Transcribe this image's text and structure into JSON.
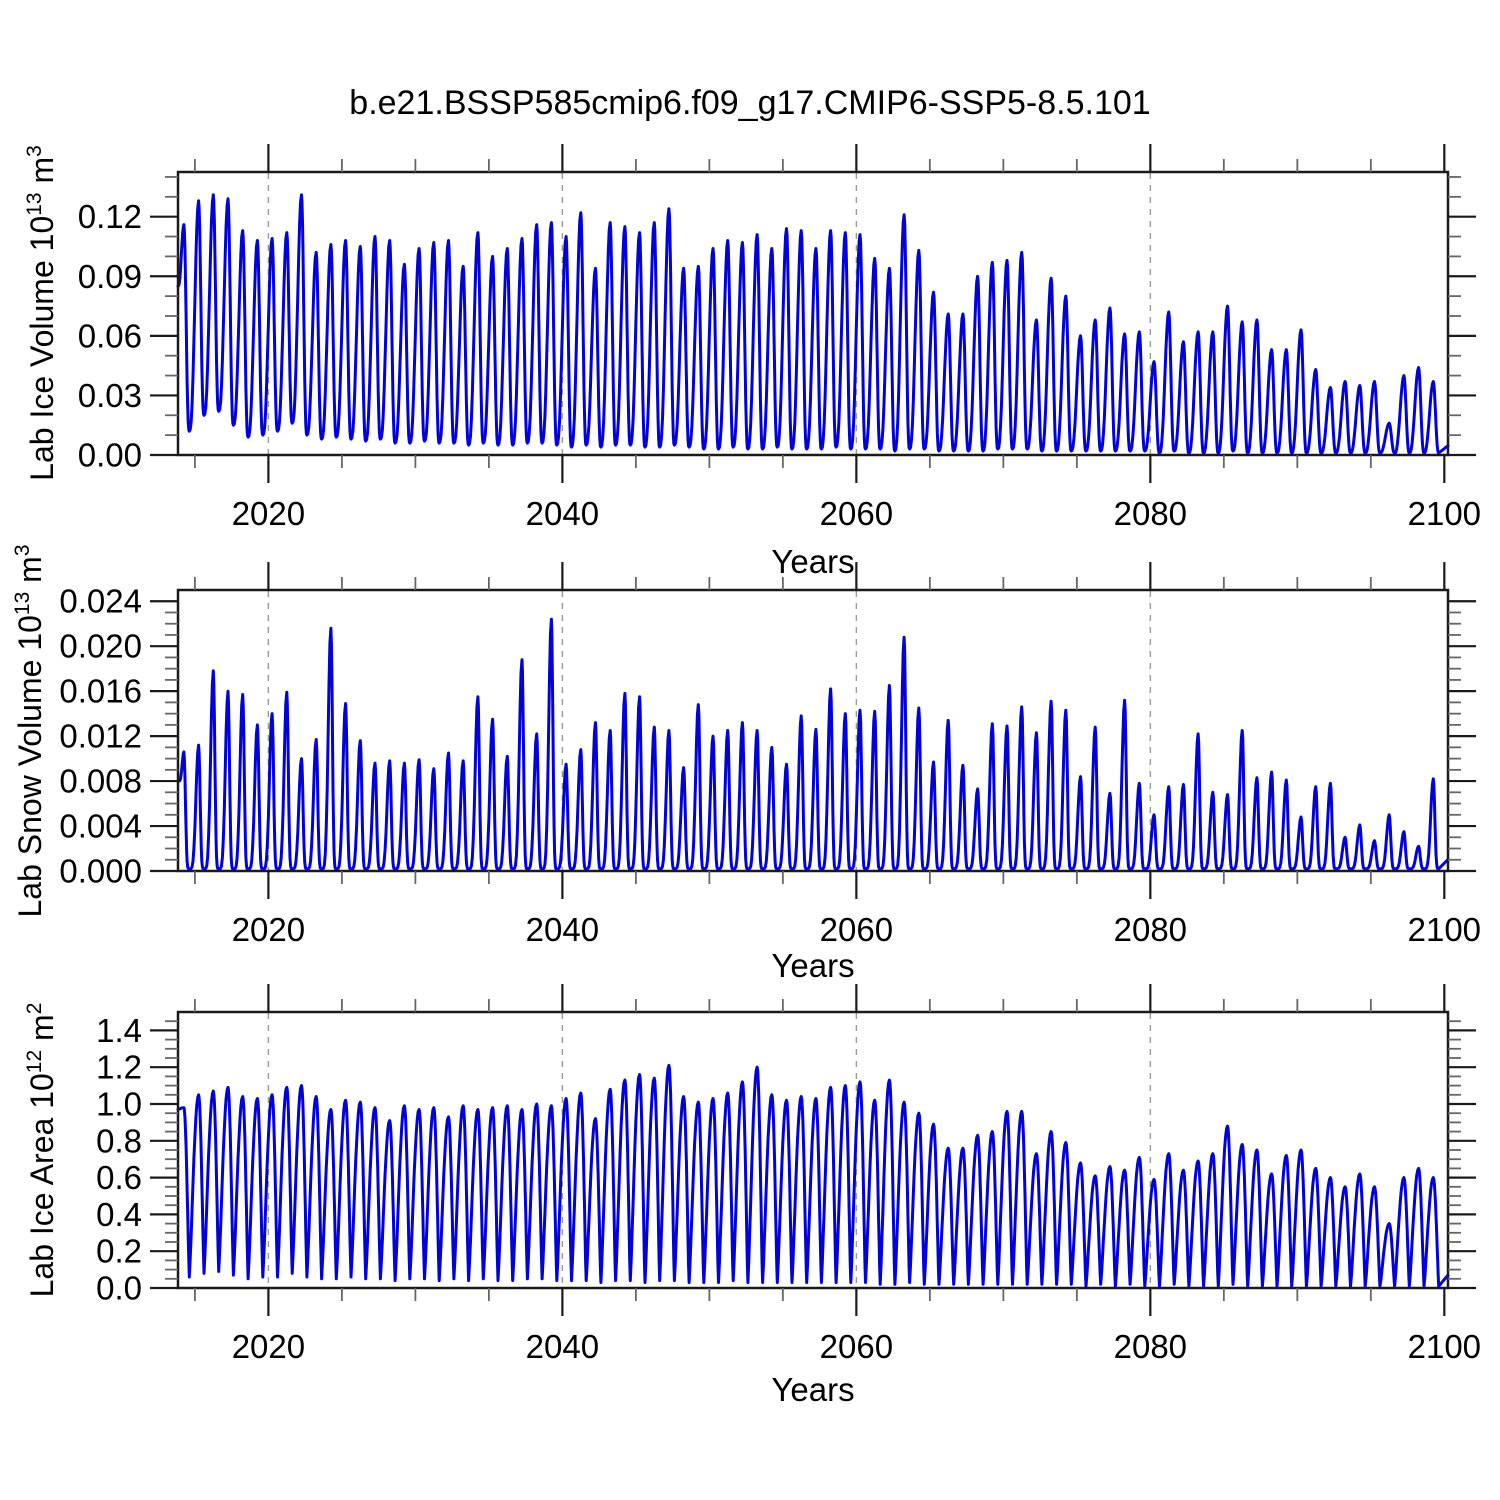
{
  "title": "b.e21.BSSP585cmip6.f09_g17.CMIP6-SSP5-8.5.101",
  "line_color": "#0202dd",
  "grid_color": "#9a9a9a",
  "frame_color": "#1a1a1a",
  "minor_tick_color": "#666666",
  "x_axis": {
    "label": "Years",
    "xlim": [
      2013.85,
      2100.25
    ],
    "major_ticks": [
      2020,
      2040,
      2060,
      2080,
      2100
    ],
    "major_tick_labels": [
      "2020",
      "2040",
      "2060",
      "2080",
      "2100"
    ],
    "minor_step": 5,
    "gridlines": [
      2020,
      2040,
      2060,
      2080
    ]
  },
  "chart_data": [
    {
      "type": "line",
      "panel": "top",
      "ylabel": {
        "base": "Lab Ice Volume 10",
        "exp": "13",
        "unit": " m",
        "unit_exp": "3"
      },
      "xlabel": "Years",
      "ylim": [
        0,
        0.1425
      ],
      "ytick_values": [
        0,
        0.03,
        0.06,
        0.09,
        0.12
      ],
      "ytick_labels": [
        "0.00",
        "0.03",
        "0.06",
        "0.09",
        "0.12"
      ],
      "y_minor_step": 0.01,
      "grid": "x-dashed",
      "legend": "none",
      "start_year": 2014,
      "peak_phase": 0.25,
      "min_phase": 0.62,
      "shape_exp": 1.35,
      "start_value": 0.085,
      "annual_peaks": [
        0.116,
        0.128,
        0.131,
        0.129,
        0.113,
        0.108,
        0.109,
        0.112,
        0.131,
        0.102,
        0.106,
        0.108,
        0.105,
        0.11,
        0.108,
        0.096,
        0.104,
        0.107,
        0.108,
        0.095,
        0.112,
        0.1,
        0.104,
        0.109,
        0.116,
        0.117,
        0.11,
        0.122,
        0.094,
        0.117,
        0.115,
        0.112,
        0.117,
        0.124,
        0.094,
        0.095,
        0.104,
        0.108,
        0.107,
        0.111,
        0.104,
        0.114,
        0.113,
        0.104,
        0.113,
        0.112,
        0.111,
        0.099,
        0.094,
        0.121,
        0.103,
        0.082,
        0.071,
        0.071,
        0.09,
        0.097,
        0.098,
        0.102,
        0.068,
        0.089,
        0.08,
        0.06,
        0.068,
        0.074,
        0.061,
        0.062,
        0.047,
        0.072,
        0.057,
        0.062,
        0.062,
        0.075,
        0.067,
        0.068,
        0.053,
        0.053,
        0.063,
        0.043,
        0.034,
        0.037,
        0.035,
        0.037,
        0.016,
        0.04,
        0.044,
        0.037
      ],
      "annual_mins": [
        0.012,
        0.02,
        0.022,
        0.015,
        0.009,
        0.01,
        0.012,
        0.016,
        0.01,
        0.008,
        0.009,
        0.008,
        0.007,
        0.008,
        0.006,
        0.006,
        0.007,
        0.006,
        0.006,
        0.005,
        0.006,
        0.005,
        0.005,
        0.006,
        0.006,
        0.005,
        0.004,
        0.005,
        0.004,
        0.005,
        0.005,
        0.004,
        0.004,
        0.005,
        0.004,
        0.003,
        0.003,
        0.004,
        0.003,
        0.003,
        0.004,
        0.003,
        0.003,
        0.003,
        0.004,
        0.003,
        0.003,
        0.003,
        0.002,
        0.003,
        0.003,
        0.002,
        0.002,
        0.002,
        0.002,
        0.003,
        0.003,
        0.003,
        0.002,
        0.002,
        0.002,
        0.002,
        0.002,
        0.002,
        0.002,
        0.002,
        0.001,
        0.002,
        0.001,
        0.001,
        0.001,
        0.002,
        0.001,
        0.001,
        0.001,
        0.001,
        0.001,
        0.001,
        0.001,
        0.001,
        0.001,
        0.001,
        0.001,
        0.001,
        0.001,
        0.001
      ]
    },
    {
      "type": "line",
      "panel": "middle",
      "ylabel": {
        "base": "Lab Snow Volume 10",
        "exp": "13",
        "unit": " m",
        "unit_exp": "3"
      },
      "xlabel": "Years",
      "ylim": [
        0,
        0.025
      ],
      "ytick_values": [
        0,
        0.004,
        0.008,
        0.012,
        0.016,
        0.02,
        0.024
      ],
      "ytick_labels": [
        "0.000",
        "0.004",
        "0.008",
        "0.012",
        "0.016",
        "0.020",
        "0.024"
      ],
      "y_minor_step": 0.001,
      "grid": "x-dashed",
      "legend": "none",
      "start_year": 2014,
      "peak_phase": 0.25,
      "min_phase": 0.62,
      "shape_exp": 2.6,
      "start_value": 0.008,
      "annual_min_constant": 0.0002,
      "annual_peaks": [
        0.0106,
        0.0112,
        0.0178,
        0.016,
        0.0157,
        0.013,
        0.014,
        0.0159,
        0.01,
        0.0117,
        0.0216,
        0.0149,
        0.0116,
        0.0096,
        0.0098,
        0.0096,
        0.0099,
        0.0091,
        0.0105,
        0.0098,
        0.0155,
        0.0135,
        0.0102,
        0.0188,
        0.0122,
        0.0224,
        0.0095,
        0.0108,
        0.0132,
        0.0125,
        0.0158,
        0.0155,
        0.0128,
        0.0125,
        0.0092,
        0.0148,
        0.012,
        0.0125,
        0.0132,
        0.0125,
        0.011,
        0.0095,
        0.0138,
        0.0126,
        0.0162,
        0.014,
        0.0143,
        0.0142,
        0.0165,
        0.0208,
        0.0145,
        0.0097,
        0.0134,
        0.0094,
        0.0073,
        0.0131,
        0.0129,
        0.0146,
        0.0123,
        0.0151,
        0.0143,
        0.0084,
        0.0128,
        0.0069,
        0.0152,
        0.0078,
        0.005,
        0.0075,
        0.0077,
        0.0122,
        0.007,
        0.0068,
        0.0125,
        0.0083,
        0.0088,
        0.0081,
        0.0048,
        0.0075,
        0.0078,
        0.003,
        0.0041,
        0.0027,
        0.005,
        0.0035,
        0.0022,
        0.0082
      ]
    },
    {
      "type": "line",
      "panel": "bottom",
      "ylabel": {
        "base": "Lab Ice Area 10",
        "exp": "12",
        "unit": " m",
        "unit_exp": "2"
      },
      "xlabel": "Years",
      "ylim": [
        0,
        1.5
      ],
      "ytick_values": [
        0,
        0.2,
        0.4,
        0.6,
        0.8,
        1.0,
        1.2,
        1.4
      ],
      "ytick_labels": [
        "0.0",
        "0.2",
        "0.4",
        "0.6",
        "0.8",
        "1.0",
        "1.2",
        "1.4"
      ],
      "y_minor_step": 0.05,
      "grid": "x-dashed",
      "legend": "none",
      "start_year": 2014,
      "peak_phase": 0.25,
      "min_phase": 0.62,
      "shape_exp": 0.62,
      "start_value": 0.97,
      "annual_peaks": [
        0.98,
        1.05,
        1.07,
        1.09,
        1.04,
        1.03,
        1.05,
        1.09,
        1.1,
        1.04,
        0.97,
        1.02,
        1.01,
        0.98,
        0.91,
        0.99,
        0.97,
        0.98,
        0.93,
        0.99,
        0.97,
        0.98,
        0.99,
        0.97,
        1.0,
        0.99,
        1.03,
        1.06,
        0.92,
        1.08,
        1.13,
        1.16,
        1.14,
        1.21,
        1.04,
        1.01,
        1.03,
        1.06,
        1.12,
        1.2,
        1.05,
        1.02,
        1.04,
        1.03,
        1.09,
        1.1,
        1.12,
        1.02,
        1.13,
        1.01,
        0.95,
        0.89,
        0.76,
        0.76,
        0.83,
        0.85,
        0.96,
        0.96,
        0.73,
        0.85,
        0.79,
        0.68,
        0.61,
        0.66,
        0.64,
        0.71,
        0.59,
        0.73,
        0.64,
        0.69,
        0.73,
        0.88,
        0.78,
        0.75,
        0.62,
        0.72,
        0.75,
        0.65,
        0.6,
        0.55,
        0.62,
        0.55,
        0.35,
        0.6,
        0.65,
        0.6
      ],
      "annual_mins": [
        0.06,
        0.08,
        0.09,
        0.07,
        0.05,
        0.06,
        0.06,
        0.08,
        0.06,
        0.05,
        0.05,
        0.06,
        0.05,
        0.05,
        0.04,
        0.05,
        0.05,
        0.04,
        0.05,
        0.04,
        0.05,
        0.04,
        0.04,
        0.05,
        0.05,
        0.04,
        0.04,
        0.04,
        0.03,
        0.04,
        0.04,
        0.03,
        0.04,
        0.04,
        0.03,
        0.03,
        0.03,
        0.04,
        0.03,
        0.03,
        0.03,
        0.03,
        0.03,
        0.03,
        0.03,
        0.03,
        0.03,
        0.02,
        0.02,
        0.03,
        0.02,
        0.02,
        0.02,
        0.02,
        0.02,
        0.02,
        0.02,
        0.02,
        0.02,
        0.02,
        0.02,
        0.01,
        0.02,
        0.01,
        0.02,
        0.01,
        0.01,
        0.02,
        0.01,
        0.01,
        0.01,
        0.02,
        0.01,
        0.01,
        0.01,
        0.01,
        0.01,
        0.01,
        0.01,
        0.01,
        0.01,
        0.01,
        0.01,
        0.01,
        0.01,
        0.01
      ]
    }
  ]
}
